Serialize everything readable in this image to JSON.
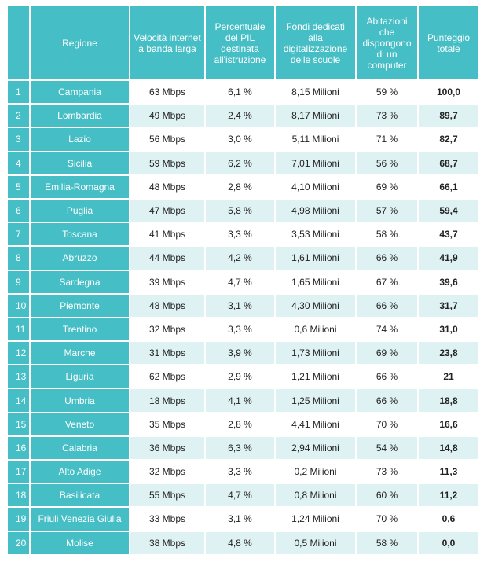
{
  "table": {
    "headers": [
      "",
      "Regione",
      "Velocità internet a banda larga",
      "Percentuale del PIL destinata all'istruzione",
      "Fondi dedicati alla digitalizzazione delle scuole",
      "Abitazioni che dispongono di un computer",
      "Punteggio totale"
    ],
    "rows": [
      [
        "1",
        "Campania",
        "63 Mbps",
        "6,1 %",
        "8,15 Milioni",
        "59 %",
        "100,0"
      ],
      [
        "2",
        "Lombardia",
        "49 Mbps",
        "2,4 %",
        "8,17 Milioni",
        "73 %",
        "89,7"
      ],
      [
        "3",
        "Lazio",
        "56 Mbps",
        "3,0 %",
        "5,11 Milioni",
        "71 %",
        "82,7"
      ],
      [
        "4",
        "Sicilia",
        "59 Mbps",
        "6,2 %",
        "7,01 Milioni",
        "56 %",
        "68,7"
      ],
      [
        "5",
        "Emilia-Romagna",
        "48 Mbps",
        "2,8 %",
        "4,10 Milioni",
        "69 %",
        "66,1"
      ],
      [
        "6",
        "Puglia",
        "47 Mbps",
        "5,8 %",
        "4,98 Milioni",
        "57 %",
        "59,4"
      ],
      [
        "7",
        "Toscana",
        "41 Mbps",
        "3,3 %",
        "3,53 Milioni",
        "58 %",
        "43,7"
      ],
      [
        "8",
        "Abruzzo",
        "44 Mbps",
        "4,2 %",
        "1,61 Milioni",
        "66 %",
        "41,9"
      ],
      [
        "9",
        "Sardegna",
        "39 Mbps",
        "4,7 %",
        "1,65 Milioni",
        "67 %",
        "39,6"
      ],
      [
        "10",
        "Piemonte",
        "48 Mbps",
        "3,1 %",
        "4,30 Milioni",
        "66 %",
        "31,7"
      ],
      [
        "11",
        "Trentino",
        "32 Mbps",
        "3,3 %",
        "0,6 Milioni",
        "74 %",
        "31,0"
      ],
      [
        "12",
        "Marche",
        "31 Mbps",
        "3,9 %",
        "1,73 Milioni",
        "69 %",
        "23,8"
      ],
      [
        "13",
        "Liguria",
        "62 Mbps",
        "2,9 %",
        "1,21 Milioni",
        "66 %",
        "21"
      ],
      [
        "14",
        "Umbria",
        "18 Mbps",
        "4,1 %",
        "1,25 Milioni",
        "66 %",
        "18,8"
      ],
      [
        "15",
        "Veneto",
        "35 Mbps",
        "2,8 %",
        "4,41 Milioni",
        "70 %",
        "16,6"
      ],
      [
        "16",
        "Calabria",
        "36 Mbps",
        "6,3 %",
        "2,94 Milioni",
        "54 %",
        "14,8"
      ],
      [
        "17",
        "Alto Adige",
        "32 Mbps",
        "3,3 %",
        "0,2 Milioni",
        "73 %",
        "11,3"
      ],
      [
        "18",
        "Basilicata",
        "55 Mbps",
        "4,7 %",
        "0,8 Milioni",
        "60 %",
        "11,2"
      ],
      [
        "19",
        "Friuli Venezia Giulia",
        "33 Mbps",
        "3,1 %",
        "1,24 Milioni",
        "70 %",
        "0,6"
      ],
      [
        "20",
        "Molise",
        "38 Mbps",
        "4,8 %",
        "0,5 Milioni",
        "58 %",
        "0,0"
      ]
    ]
  },
  "colors": {
    "header_bg": "#45bec5",
    "header_text": "#ffffff",
    "row_alt_bg": "#dff2f3",
    "row_bg": "#ffffff"
  }
}
